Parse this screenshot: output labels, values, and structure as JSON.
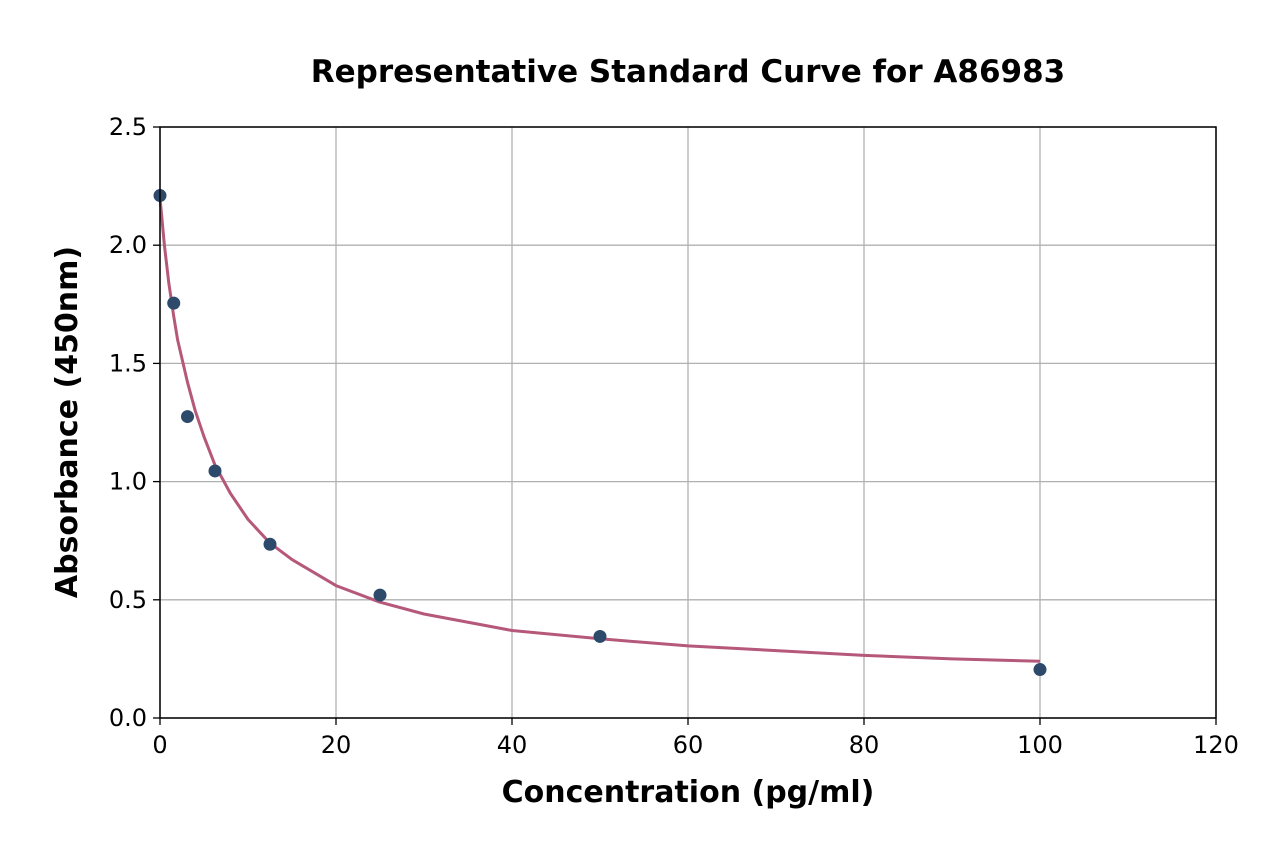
{
  "chart_data": {
    "type": "scatter",
    "title": "Representative Standard Curve for A86983",
    "xlabel": "Concentration (pg/ml)",
    "ylabel": "Absorbance (450nm)",
    "xlim": [
      0,
      120
    ],
    "ylim": [
      0,
      2.5
    ],
    "x_ticks": [
      "0",
      "20",
      "40",
      "60",
      "80",
      "100",
      "120"
    ],
    "y_ticks": [
      "0.0",
      "0.5",
      "1.0",
      "1.5",
      "2.0",
      "2.5"
    ],
    "grid": true,
    "series": [
      {
        "kind": "points",
        "color": "#2e4a6b",
        "x": [
          0,
          1.56,
          3.125,
          6.25,
          12.5,
          25,
          50,
          100
        ],
        "y": [
          2.21,
          1.755,
          1.275,
          1.045,
          0.735,
          0.52,
          0.345,
          0.205
        ]
      },
      {
        "kind": "fit-curve",
        "color": "#b5587a",
        "x": [
          0,
          0.5,
          1,
          1.56,
          2,
          3.125,
          4,
          5,
          6.25,
          8,
          10,
          12.5,
          15,
          20,
          25,
          30,
          40,
          50,
          60,
          70,
          80,
          90,
          100
        ],
        "y": [
          2.2,
          2.0,
          1.84,
          1.7,
          1.6,
          1.42,
          1.3,
          1.19,
          1.07,
          0.95,
          0.84,
          0.74,
          0.67,
          0.56,
          0.49,
          0.44,
          0.37,
          0.335,
          0.305,
          0.285,
          0.265,
          0.25,
          0.24
        ]
      }
    ]
  }
}
